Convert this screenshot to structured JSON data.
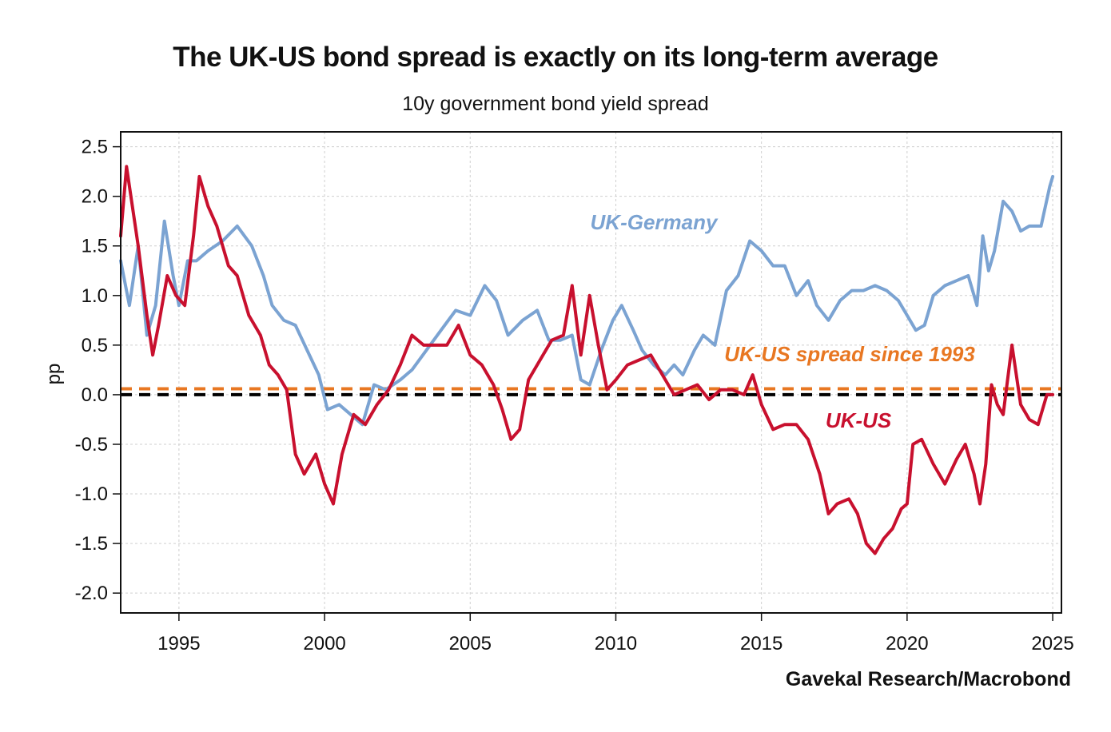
{
  "chart_data": {
    "type": "line",
    "title": "The UK-US bond spread is exactly on its long-term average",
    "subtitle": "10y government bond yield spread",
    "ylabel": "pp",
    "xlabel": "",
    "source": "Gavekal Research/Macrobond",
    "xlim": [
      1993.0,
      2025.3
    ],
    "ylim": [
      -2.2,
      2.65
    ],
    "x_ticks": [
      1995,
      2000,
      2005,
      2010,
      2015,
      2020,
      2025
    ],
    "x_tick_labels": [
      "1995",
      "2000",
      "2005",
      "2010",
      "2015",
      "2020",
      "2025"
    ],
    "y_ticks": [
      2.5,
      2.0,
      1.5,
      1.0,
      0.5,
      0.0,
      -0.5,
      -1.0,
      -1.5,
      -2.0
    ],
    "y_tick_labels": [
      "2.5",
      "2.0",
      "1.5",
      "1.0",
      "0.5",
      "0.0",
      "-0.5",
      "-1.0",
      "-1.5",
      "-2.0"
    ],
    "grid": true,
    "series": [
      {
        "name": "UK-Germany",
        "label": "UK-Germany",
        "color": "#7ba3d2",
        "x": [
          1993.0,
          1993.3,
          1993.6,
          1993.9,
          1994.2,
          1994.5,
          1994.8,
          1995.0,
          1995.3,
          1995.6,
          1996.0,
          1996.5,
          1997.0,
          1997.5,
          1997.9,
          1998.2,
          1998.6,
          1999.0,
          1999.4,
          1999.8,
          2000.1,
          2000.5,
          2000.9,
          2001.3,
          2001.7,
          2002.1,
          2002.6,
          2003.0,
          2003.5,
          2004.0,
          2004.5,
          2005.0,
          2005.5,
          2005.9,
          2006.3,
          2006.8,
          2007.3,
          2007.7,
          2008.1,
          2008.5,
          2008.8,
          2009.1,
          2009.5,
          2009.9,
          2010.2,
          2010.6,
          2010.9,
          2011.3,
          2011.7,
          2012.0,
          2012.3,
          2012.7,
          2013.0,
          2013.4,
          2013.8,
          2014.2,
          2014.6,
          2015.0,
          2015.4,
          2015.8,
          2016.2,
          2016.6,
          2016.9,
          2017.3,
          2017.7,
          2018.1,
          2018.5,
          2018.9,
          2019.3,
          2019.7,
          2020.0,
          2020.3,
          2020.6,
          2020.9,
          2021.3,
          2021.7,
          2022.1,
          2022.4,
          2022.6,
          2022.8,
          2023.0,
          2023.3,
          2023.6,
          2023.9,
          2024.2,
          2024.6,
          2024.9,
          2025.0
        ],
        "values": [
          1.35,
          0.9,
          1.5,
          0.6,
          0.9,
          1.75,
          1.2,
          0.9,
          1.35,
          1.35,
          1.45,
          1.55,
          1.7,
          1.5,
          1.2,
          0.9,
          0.75,
          0.7,
          0.45,
          0.2,
          -0.15,
          -0.1,
          -0.2,
          -0.3,
          0.1,
          0.05,
          0.15,
          0.25,
          0.45,
          0.65,
          0.85,
          0.8,
          1.1,
          0.95,
          0.6,
          0.75,
          0.85,
          0.55,
          0.55,
          0.6,
          0.15,
          0.1,
          0.45,
          0.75,
          0.9,
          0.65,
          0.45,
          0.3,
          0.2,
          0.3,
          0.2,
          0.45,
          0.6,
          0.5,
          1.05,
          1.2,
          1.55,
          1.45,
          1.3,
          1.3,
          1.0,
          1.15,
          0.9,
          0.75,
          0.95,
          1.05,
          1.05,
          1.1,
          1.05,
          0.95,
          0.8,
          0.65,
          0.7,
          1.0,
          1.1,
          1.15,
          1.2,
          0.9,
          1.6,
          1.25,
          1.45,
          1.95,
          1.85,
          1.65,
          1.7,
          1.7,
          2.1,
          2.2
        ]
      },
      {
        "name": "UK-US",
        "label": "UK-US",
        "color": "#c8102e",
        "x": [
          1993.0,
          1993.2,
          1993.4,
          1993.6,
          1993.9,
          1994.1,
          1994.3,
          1994.6,
          1994.9,
          1995.2,
          1995.5,
          1995.7,
          1996.0,
          1996.3,
          1996.7,
          1997.0,
          1997.4,
          1997.8,
          1998.1,
          1998.4,
          1998.7,
          1999.0,
          1999.3,
          1999.7,
          2000.0,
          2000.3,
          2000.6,
          2001.0,
          2001.4,
          2001.8,
          2002.2,
          2002.6,
          2003.0,
          2003.4,
          2003.8,
          2004.2,
          2004.6,
          2005.0,
          2005.4,
          2005.8,
          2006.1,
          2006.4,
          2006.7,
          2007.0,
          2007.4,
          2007.8,
          2008.2,
          2008.5,
          2008.8,
          2009.1,
          2009.4,
          2009.7,
          2010.0,
          2010.4,
          2010.8,
          2011.2,
          2011.6,
          2012.0,
          2012.4,
          2012.8,
          2013.2,
          2013.6,
          2014.0,
          2014.4,
          2014.7,
          2015.0,
          2015.4,
          2015.8,
          2016.2,
          2016.6,
          2017.0,
          2017.3,
          2017.6,
          2018.0,
          2018.3,
          2018.6,
          2018.9,
          2019.2,
          2019.5,
          2019.8,
          2020.0,
          2020.2,
          2020.5,
          2020.9,
          2021.3,
          2021.7,
          2022.0,
          2022.3,
          2022.5,
          2022.7,
          2022.9,
          2023.1,
          2023.3,
          2023.6,
          2023.9,
          2024.2,
          2024.5,
          2024.8,
          2025.0
        ],
        "values": [
          1.6,
          2.3,
          1.9,
          1.5,
          0.8,
          0.4,
          0.7,
          1.2,
          1.0,
          0.9,
          1.6,
          2.2,
          1.9,
          1.7,
          1.3,
          1.2,
          0.8,
          0.6,
          0.3,
          0.2,
          0.05,
          -0.6,
          -0.8,
          -0.6,
          -0.9,
          -1.1,
          -0.6,
          -0.2,
          -0.3,
          -0.1,
          0.05,
          0.3,
          0.6,
          0.5,
          0.5,
          0.5,
          0.7,
          0.4,
          0.3,
          0.1,
          -0.15,
          -0.45,
          -0.35,
          0.15,
          0.35,
          0.55,
          0.6,
          1.1,
          0.4,
          1.0,
          0.5,
          0.05,
          0.15,
          0.3,
          0.35,
          0.4,
          0.2,
          0.0,
          0.05,
          0.1,
          -0.05,
          0.05,
          0.05,
          0.0,
          0.2,
          -0.1,
          -0.35,
          -0.3,
          -0.3,
          -0.45,
          -0.8,
          -1.2,
          -1.1,
          -1.05,
          -1.2,
          -1.5,
          -1.6,
          -1.45,
          -1.35,
          -1.15,
          -1.1,
          -0.5,
          -0.45,
          -0.7,
          -0.9,
          -0.65,
          -0.5,
          -0.8,
          -1.1,
          -0.7,
          0.1,
          -0.1,
          -0.2,
          0.5,
          -0.1,
          -0.25,
          -0.3,
          0.0,
          0.0
        ]
      }
    ],
    "reference_lines": [
      {
        "name": "UK-US spread since 1993",
        "label": "UK-US spread since 1993",
        "value": 0.06,
        "color": "#e87722",
        "style": "dashed"
      },
      {
        "name": "zero",
        "value": 0.0,
        "color": "#000000",
        "style": "dashed"
      }
    ]
  }
}
